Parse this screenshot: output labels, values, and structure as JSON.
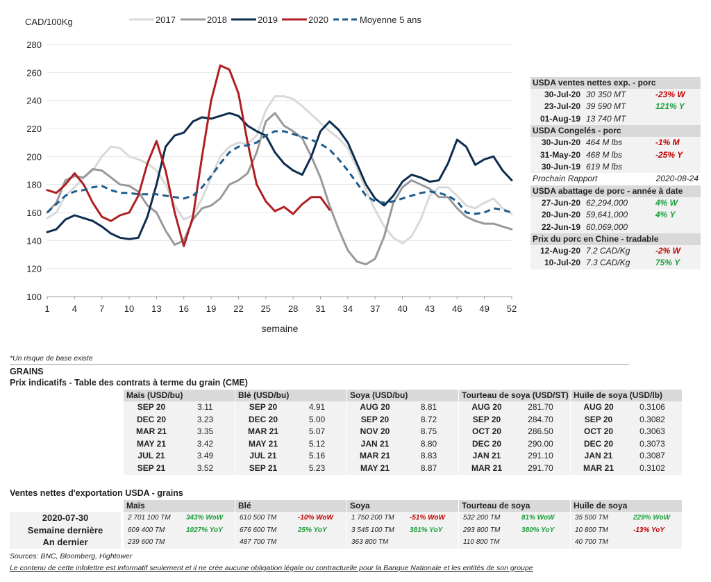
{
  "chart_data": {
    "type": "line",
    "ylabel": "CAD/100Kg",
    "xlabel": "semaine",
    "ylim": [
      100,
      280
    ],
    "yticks": [
      100,
      120,
      140,
      160,
      180,
      200,
      220,
      240,
      260,
      280
    ],
    "xticks": [
      1,
      4,
      7,
      10,
      13,
      16,
      19,
      22,
      25,
      28,
      31,
      34,
      37,
      40,
      43,
      46,
      49,
      52
    ],
    "grid": true,
    "legend": "top",
    "series": [
      {
        "name": "2017",
        "color": "#d9d9d9",
        "dash": false,
        "x": [
          1,
          2,
          3,
          4,
          5,
          6,
          7,
          8,
          9,
          10,
          11,
          12,
          13,
          14,
          15,
          16,
          17,
          18,
          19,
          20,
          21,
          22,
          23,
          24,
          25,
          26,
          27,
          28,
          29,
          30,
          31,
          32,
          33,
          34,
          35,
          36,
          37,
          38,
          39,
          40,
          41,
          42,
          43,
          44,
          45,
          46,
          47,
          48,
          49,
          50,
          51,
          52
        ],
        "y": [
          156,
          160,
          172,
          178,
          185,
          190,
          200,
          207,
          206,
          200,
          198,
          195,
          190,
          180,
          165,
          155,
          158,
          170,
          185,
          200,
          207,
          210,
          209,
          215,
          233,
          243,
          243,
          241,
          236,
          230,
          224,
          218,
          213,
          206,
          192,
          176,
          162,
          150,
          142,
          138,
          143,
          155,
          172,
          178,
          178,
          172,
          165,
          163,
          167,
          170,
          163,
          159
        ]
      },
      {
        "name": "2018",
        "color": "#999999",
        "dash": false,
        "x": [
          1,
          2,
          3,
          4,
          5,
          6,
          7,
          8,
          9,
          10,
          11,
          12,
          13,
          14,
          15,
          16,
          17,
          18,
          19,
          20,
          21,
          22,
          23,
          24,
          25,
          26,
          27,
          28,
          29,
          30,
          31,
          32,
          33,
          34,
          35,
          36,
          37,
          38,
          39,
          40,
          41,
          42,
          43,
          44,
          45,
          46,
          47,
          48,
          49,
          50,
          51,
          52
        ],
        "y": [
          160,
          167,
          183,
          186,
          185,
          191,
          190,
          185,
          180,
          179,
          175,
          165,
          160,
          147,
          137,
          140,
          155,
          163,
          165,
          170,
          180,
          183,
          188,
          203,
          225,
          231,
          222,
          218,
          213,
          200,
          185,
          165,
          148,
          133,
          125,
          123,
          127,
          143,
          167,
          178,
          183,
          180,
          177,
          171,
          171,
          163,
          157,
          154,
          152,
          152,
          150,
          148
        ]
      },
      {
        "name": "2019",
        "color": "#0d2c4e",
        "dash": false,
        "x": [
          1,
          2,
          3,
          4,
          5,
          6,
          7,
          8,
          9,
          10,
          11,
          12,
          13,
          14,
          15,
          16,
          17,
          18,
          19,
          20,
          21,
          22,
          23,
          24,
          25,
          26,
          27,
          28,
          29,
          30,
          31,
          32,
          33,
          34,
          35,
          36,
          37,
          38,
          39,
          40,
          41,
          42,
          43,
          44,
          45,
          46,
          47,
          48,
          49,
          50,
          51,
          52
        ],
        "y": [
          146,
          148,
          155,
          158,
          156,
          154,
          150,
          145,
          142,
          141,
          142,
          157,
          180,
          207,
          215,
          217,
          225,
          228,
          227,
          229,
          231,
          229,
          222,
          218,
          215,
          203,
          195,
          190,
          187,
          200,
          218,
          225,
          219,
          210,
          195,
          180,
          170,
          165,
          172,
          182,
          187,
          185,
          182,
          183,
          195,
          212,
          207,
          194,
          198,
          200,
          190,
          183
        ]
      },
      {
        "name": "2020",
        "color": "#b01e23",
        "dash": false,
        "x": [
          1,
          2,
          3,
          4,
          5,
          6,
          7,
          8,
          9,
          10,
          11,
          12,
          13,
          14,
          15,
          16,
          17,
          18,
          19,
          20,
          21,
          22,
          23,
          24,
          25,
          26,
          27,
          28,
          29,
          30,
          31,
          32
        ],
        "y": [
          176,
          174,
          180,
          188,
          180,
          167,
          157,
          154,
          158,
          160,
          172,
          195,
          211,
          190,
          160,
          136,
          157,
          200,
          240,
          265,
          262,
          245,
          210,
          180,
          168,
          161,
          164,
          159,
          166,
          171,
          171,
          162
        ]
      },
      {
        "name": "Moyenne 5 ans",
        "color": "#1f5c8c",
        "dash": true,
        "x": [
          1,
          2,
          3,
          4,
          5,
          6,
          7,
          8,
          9,
          10,
          11,
          12,
          13,
          14,
          15,
          16,
          17,
          18,
          19,
          20,
          21,
          22,
          23,
          24,
          25,
          26,
          27,
          28,
          29,
          30,
          31,
          32,
          33,
          34,
          35,
          36,
          37,
          38,
          39,
          40,
          41,
          42,
          43,
          44,
          45,
          46,
          47,
          48,
          49,
          50,
          51,
          52
        ],
        "y": [
          160,
          166,
          172,
          175,
          176,
          178,
          179,
          176,
          174,
          174,
          173,
          173,
          173,
          172,
          171,
          170,
          172,
          178,
          186,
          195,
          203,
          207,
          208,
          210,
          215,
          218,
          218,
          216,
          214,
          212,
          209,
          205,
          198,
          190,
          181,
          172,
          168,
          167,
          168,
          170,
          172,
          174,
          175,
          174,
          172,
          168,
          160,
          159,
          160,
          163,
          162,
          160
        ]
      }
    ]
  },
  "usda": {
    "sections": [
      {
        "title": "USDA ventes nettes exp. - porc",
        "rows": [
          {
            "date": "30-Jul-20",
            "value": "30 350  MT",
            "change": "-23% W",
            "sign": "neg"
          },
          {
            "date": "23-Jul-20",
            "value": "39 590  MT",
            "change": "121% Y",
            "sign": "pos"
          },
          {
            "date": "01-Aug-19",
            "value": "13 740  MT",
            "change": "",
            "sign": ""
          }
        ]
      },
      {
        "title": "USDA Congelés - porc",
        "rows": [
          {
            "date": "30-Jun-20",
            "value": "464 M lbs",
            "change": "-1% M",
            "sign": "neg"
          },
          {
            "date": "31-May-20",
            "value": "468 M lbs",
            "change": "-25% Y",
            "sign": "neg"
          },
          {
            "date": "30-Jun-19",
            "value": "619 M lbs",
            "change": "",
            "sign": ""
          }
        ]
      },
      {
        "title": "",
        "next_label": "Prochain Rapport",
        "next_date": "2020-08-24"
      },
      {
        "title": "USDA abattage de porc - année à date",
        "rows": [
          {
            "date": "27-Jun-20",
            "value": "62,294,000",
            "change": "4% W",
            "sign": "pos"
          },
          {
            "date": "20-Jun-20",
            "value": "59,641,000",
            "change": "4% Y",
            "sign": "pos"
          },
          {
            "date": "22-Jun-19",
            "value": "60,069,000",
            "change": "",
            "sign": ""
          }
        ]
      },
      {
        "title": "Prix du porc en Chine - tradable",
        "rows": [
          {
            "date": "12-Aug-20",
            "value": "7.2 CAD/Kg",
            "change": "-2% W",
            "sign": "neg"
          },
          {
            "date": "10-Jul-20",
            "value": "7.3 CAD/Kg",
            "change": "75% Y",
            "sign": "pos"
          }
        ]
      }
    ]
  },
  "note": "*Un risque de base existe",
  "grains_title": "GRAINS",
  "futures_title": "Prix indicatifs - Table des contrats à terme du grain (CME)",
  "futures": [
    {
      "name": "Maïs (USD/bu)",
      "rows": [
        [
          "SEP 20",
          "3.11"
        ],
        [
          "DEC 20",
          "3.23"
        ],
        [
          "MAR 21",
          "3.35"
        ],
        [
          "MAY 21",
          "3.42"
        ],
        [
          "JUL 21",
          "3.49"
        ],
        [
          "SEP 21",
          "3.52"
        ]
      ]
    },
    {
      "name": "Blé (USD/bu)",
      "rows": [
        [
          "SEP 20",
          "4.91"
        ],
        [
          "DEC 20",
          "5.00"
        ],
        [
          "MAR 21",
          "5.07"
        ],
        [
          "MAY 21",
          "5.12"
        ],
        [
          "JUL 21",
          "5.16"
        ],
        [
          "SEP 21",
          "5.23"
        ]
      ]
    },
    {
      "name": "Soya (USD/bu)",
      "rows": [
        [
          "AUG 20",
          "8.81"
        ],
        [
          "SEP 20",
          "8.72"
        ],
        [
          "NOV 20",
          "8.75"
        ],
        [
          "JAN 21",
          "8.80"
        ],
        [
          "MAR 21",
          "8.83"
        ],
        [
          "MAY 21",
          "8.87"
        ]
      ]
    },
    {
      "name": "Tourteau de soya (USD/ST)",
      "rows": [
        [
          "AUG 20",
          "281.70"
        ],
        [
          "SEP 20",
          "284.70"
        ],
        [
          "OCT 20",
          "286.50"
        ],
        [
          "DEC 20",
          "290.00"
        ],
        [
          "JAN 21",
          "291.10"
        ],
        [
          "MAR 21",
          "291.70"
        ]
      ]
    },
    {
      "name": "Huile de soya (USD/lb)",
      "rows": [
        [
          "AUG 20",
          "0.3106"
        ],
        [
          "SEP 20",
          "0.3082"
        ],
        [
          "OCT 20",
          "0.3063"
        ],
        [
          "DEC 20",
          "0.3073"
        ],
        [
          "JAN 21",
          "0.3087"
        ],
        [
          "MAR 21",
          "0.3102"
        ]
      ]
    }
  ],
  "exports_title": "Ventes nettes d'exportation USDA - grains",
  "exports_rows": [
    "2020-07-30",
    "Semaine dernière",
    "An dernier"
  ],
  "exports": [
    {
      "name": "Maïs",
      "rows": [
        [
          "2 701 100 TM",
          "343% WoW",
          "pos"
        ],
        [
          "609 400 TM",
          "1027% YoY",
          "pos"
        ],
        [
          "239 600 TM",
          "",
          ""
        ]
      ]
    },
    {
      "name": "Blé",
      "rows": [
        [
          "610 500 TM",
          "-10% WoW",
          "neg"
        ],
        [
          "676 600 TM",
          "25% YoY",
          "pos"
        ],
        [
          "487 700 TM",
          "",
          ""
        ]
      ]
    },
    {
      "name": "Soya",
      "rows": [
        [
          "1 750 200 TM",
          "-51% WoW",
          "neg"
        ],
        [
          "3 545 100 TM",
          "381% YoY",
          "pos"
        ],
        [
          "363 800 TM",
          "",
          ""
        ]
      ]
    },
    {
      "name": "Tourteau de soya",
      "rows": [
        [
          "532 200 TM",
          "81% WoW",
          "pos"
        ],
        [
          "293 800 TM",
          "380% YoY",
          "pos"
        ],
        [
          "110 800 TM",
          "",
          ""
        ]
      ]
    },
    {
      "name": "Huile de soya",
      "rows": [
        [
          "35 500 TM",
          "229% WoW",
          "pos"
        ],
        [
          "10 800 TM",
          "-13% YoY",
          "neg"
        ],
        [
          "40 700 TM",
          "",
          ""
        ]
      ]
    }
  ],
  "sources": "Sources: BNC, Bloomberg, Hightower",
  "disclaimer": "Le contenu de cette infolettre est informatif seulement et il ne crée aucune obligation légale ou contractuelle pour la Banque Nationale et les entités de son groupe"
}
